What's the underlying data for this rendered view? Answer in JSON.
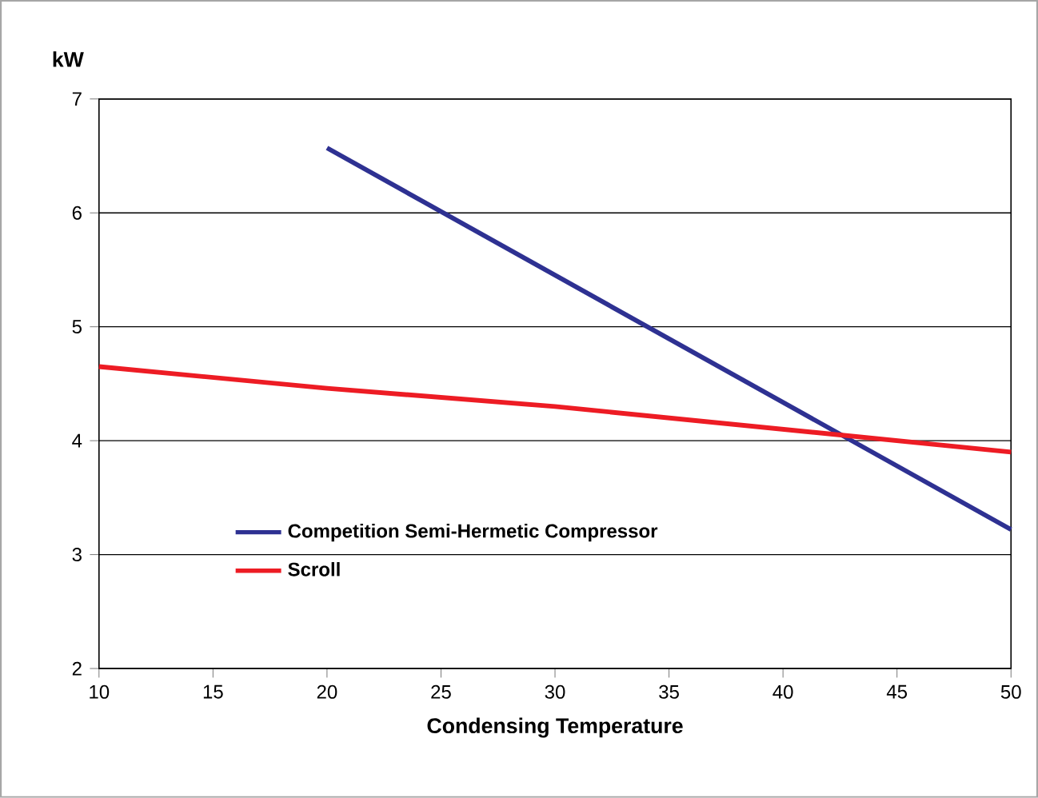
{
  "chart_data": {
    "type": "line",
    "xlabel": "Condensing Temperature",
    "ylabel": "kW",
    "xlim": [
      10,
      50
    ],
    "xticks": [
      10,
      15,
      20,
      25,
      30,
      35,
      40,
      45,
      50
    ],
    "ylim": [
      2,
      7
    ],
    "yticks": [
      2,
      3,
      4,
      5,
      6,
      7
    ],
    "grid": "y",
    "legend": "bottom left",
    "marker": "none",
    "line_style": "solid",
    "series": [
      {
        "name": "Competition Semi-Hermetic Compressor",
        "color": "#2e3192",
        "x": [
          20,
          50
        ],
        "values": [
          6.57,
          3.22
        ]
      },
      {
        "name": "Scroll",
        "color": "#ed1c24",
        "x": [
          10,
          20,
          30,
          40,
          50
        ],
        "values": [
          4.65,
          4.46,
          4.3,
          4.1,
          3.9
        ]
      }
    ]
  }
}
